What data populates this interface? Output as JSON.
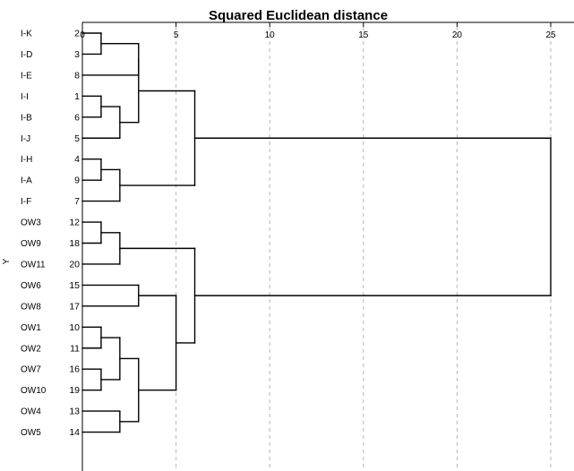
{
  "chart_data": {
    "type": "dendrogram",
    "title": "Squared Euclidean distance",
    "ylabel": "Y",
    "xlim": [
      0,
      25
    ],
    "x_ticks": [
      0,
      5,
      10,
      15,
      20,
      25
    ],
    "grid": true,
    "leaves": [
      {
        "label": "I-K",
        "id": "2"
      },
      {
        "label": "I-D",
        "id": "3"
      },
      {
        "label": "I-E",
        "id": "8"
      },
      {
        "label": "I-I",
        "id": "1"
      },
      {
        "label": "I-B",
        "id": "6"
      },
      {
        "label": "I-J",
        "id": "5"
      },
      {
        "label": "I-H",
        "id": "4"
      },
      {
        "label": "I-A",
        "id": "9"
      },
      {
        "label": "I-F",
        "id": "7"
      },
      {
        "label": "OW3",
        "id": "12"
      },
      {
        "label": "OW9",
        "id": "18"
      },
      {
        "label": "OW11",
        "id": "20"
      },
      {
        "label": "OW6",
        "id": "15"
      },
      {
        "label": "OW8",
        "id": "17"
      },
      {
        "label": "OW1",
        "id": "10"
      },
      {
        "label": "OW2",
        "id": "11"
      },
      {
        "label": "OW7",
        "id": "16"
      },
      {
        "label": "OW10",
        "id": "19"
      },
      {
        "label": "OW4",
        "id": "13"
      },
      {
        "label": "OW5",
        "id": "14"
      }
    ],
    "merges": [
      {
        "id": "A",
        "a": 0,
        "b": 1,
        "height": 1.0
      },
      {
        "id": "B",
        "a": "A",
        "b": 2,
        "height": 3.0
      },
      {
        "id": "C",
        "a": 3,
        "b": 4,
        "height": 1.0
      },
      {
        "id": "D",
        "a": "C",
        "b": 5,
        "height": 2.0
      },
      {
        "id": "E",
        "a": "B",
        "b": "D",
        "height": 3.0
      },
      {
        "id": "F",
        "a": 6,
        "b": 7,
        "height": 1.0
      },
      {
        "id": "G",
        "a": "F",
        "b": 8,
        "height": 2.0
      },
      {
        "id": "H",
        "a": "E",
        "b": "G",
        "height": 6.0
      },
      {
        "id": "I",
        "a": 9,
        "b": 10,
        "height": 1.0
      },
      {
        "id": "J",
        "a": "I",
        "b": 11,
        "height": 2.0
      },
      {
        "id": "K",
        "a": 12,
        "b": 13,
        "height": 3.0
      },
      {
        "id": "L",
        "a": 14,
        "b": 15,
        "height": 1.0
      },
      {
        "id": "M",
        "a": 16,
        "b": 17,
        "height": 1.0
      },
      {
        "id": "N",
        "a": "L",
        "b": "M",
        "height": 2.0
      },
      {
        "id": "O",
        "a": 18,
        "b": 19,
        "height": 2.0
      },
      {
        "id": "P",
        "a": "N",
        "b": "O",
        "height": 3.0
      },
      {
        "id": "Q",
        "a": "K",
        "b": "P",
        "height": 5.0
      },
      {
        "id": "R",
        "a": "J",
        "b": "Q",
        "height": 6.0
      },
      {
        "id": "S",
        "a": "H",
        "b": "R",
        "height": 25.0
      }
    ]
  }
}
